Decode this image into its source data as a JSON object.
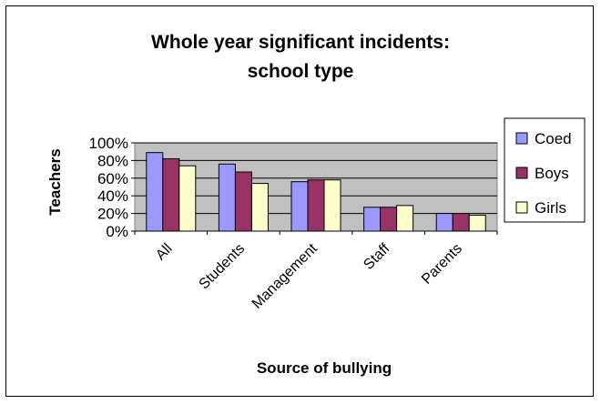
{
  "chart_data": {
    "type": "bar",
    "title_line1": "Whole year significant incidents:",
    "title_line2": "school type",
    "xlabel": "Source of bullying",
    "ylabel": "Teachers",
    "categories": [
      "All",
      "Students",
      "Management",
      "Staff",
      "Parents"
    ],
    "ylim": [
      0,
      1
    ],
    "yticks": [
      "0%",
      "20%",
      "40%",
      "60%",
      "80%",
      "100%"
    ],
    "grid": true,
    "legend_position": "right",
    "plot_background": "#c0c0c0",
    "series": [
      {
        "name": "Coed",
        "color": "#9999ff",
        "values": [
          0.89,
          0.76,
          0.56,
          0.27,
          0.2
        ]
      },
      {
        "name": "Boys",
        "color": "#993366",
        "values": [
          0.82,
          0.67,
          0.58,
          0.27,
          0.2
        ]
      },
      {
        "name": "Girls",
        "color": "#ffffcc",
        "values": [
          0.74,
          0.54,
          0.58,
          0.29,
          0.18
        ]
      }
    ]
  }
}
